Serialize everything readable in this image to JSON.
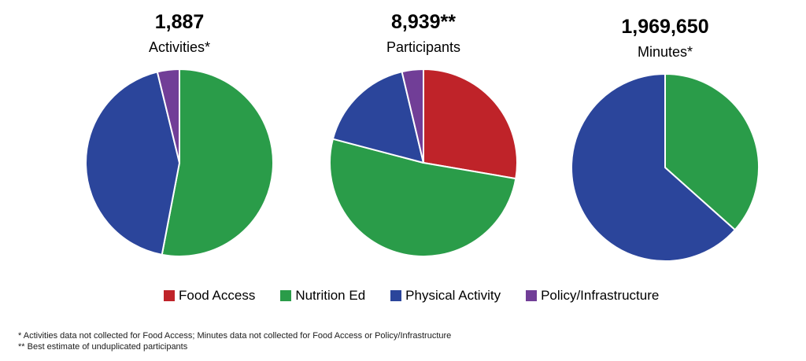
{
  "colors": {
    "food_access": "#BF2329",
    "nutrition_ed": "#2A9C49",
    "physical_activity": "#2B459B",
    "policy_infrastructure": "#713E97",
    "slice_border": "#FFFFFF",
    "text": "#000000"
  },
  "chart_data": [
    {
      "type": "pie",
      "title": "1,887",
      "subtitle": "Activities*",
      "total_label": "1,887",
      "start_angle_deg": 0,
      "direction": "clockwise",
      "slices": [
        {
          "category": "Nutrition Ed",
          "percent": 53.0,
          "color": "#2A9C49"
        },
        {
          "category": "Physical Activity",
          "percent": 43.2,
          "color": "#2B459B"
        },
        {
          "category": "Policy/Infrastructure",
          "percent": 3.8,
          "color": "#713E97"
        }
      ]
    },
    {
      "type": "pie",
      "title": "8,939**",
      "subtitle": "Participants",
      "total_label": "8,939**",
      "start_angle_deg": 0,
      "direction": "clockwise",
      "slices": [
        {
          "category": "Food Access",
          "percent": 27.7,
          "color": "#BF2329"
        },
        {
          "category": "Nutrition Ed",
          "percent": 51.4,
          "color": "#2A9C49"
        },
        {
          "category": "Physical Activity",
          "percent": 17.2,
          "color": "#2B459B"
        },
        {
          "category": "Policy/Infrastructure",
          "percent": 3.7,
          "color": "#713E97"
        }
      ]
    },
    {
      "type": "pie",
      "title": "1,969,650",
      "subtitle": "Minutes*",
      "total_label": "1,969,650",
      "start_angle_deg": 0,
      "direction": "clockwise",
      "slices": [
        {
          "category": "Nutrition Ed",
          "percent": 36.6,
          "color": "#2A9C49"
        },
        {
          "category": "Physical Activity",
          "percent": 63.4,
          "color": "#2B459B"
        }
      ]
    }
  ],
  "legend": {
    "items": [
      {
        "label": "Food Access",
        "color": "#BF2329"
      },
      {
        "label": "Nutrition Ed",
        "color": "#2A9C49"
      },
      {
        "label": "Physical Activity",
        "color": "#2B459B"
      },
      {
        "label": "Policy/Infrastructure",
        "color": "#713E97"
      }
    ]
  },
  "footnotes": {
    "line1": "* Activities data not collected for Food Access; Minutes data not collected for Food Access or Policy/Infrastructure",
    "line2": "** Best estimate of unduplicated participants"
  }
}
